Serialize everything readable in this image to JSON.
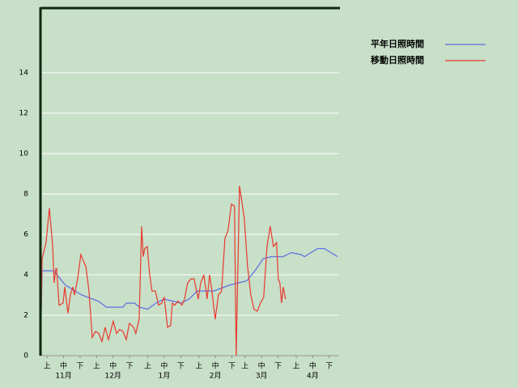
{
  "chart_data": {
    "type": "line",
    "xlim": [
      0,
      181
    ],
    "ylim": [
      0,
      17.2
    ],
    "yticks": [
      0,
      2,
      4,
      6,
      8,
      10,
      12,
      14
    ],
    "xticks": [
      {
        "value": 4,
        "label": "上"
      },
      {
        "value": 14,
        "label": "中"
      },
      {
        "value": 24,
        "label": "下"
      },
      {
        "value": 34,
        "label": "上"
      },
      {
        "value": 44,
        "label": "中"
      },
      {
        "value": 54,
        "label": "下"
      },
      {
        "value": 65,
        "label": "上"
      },
      {
        "value": 75,
        "label": "中"
      },
      {
        "value": 85,
        "label": "下"
      },
      {
        "value": 96,
        "label": "上"
      },
      {
        "value": 106,
        "label": "中"
      },
      {
        "value": 116,
        "label": "下"
      },
      {
        "value": 124,
        "label": "上"
      },
      {
        "value": 134,
        "label": "中"
      },
      {
        "value": 144,
        "label": "下"
      },
      {
        "value": 155,
        "label": "上"
      },
      {
        "value": 165,
        "label": "中"
      },
      {
        "value": 175,
        "label": "下"
      }
    ],
    "month_ticks": [
      {
        "value": 14,
        "label": "11月"
      },
      {
        "value": 44,
        "label": "12月"
      },
      {
        "value": 75,
        "label": "1月"
      },
      {
        "value": 106,
        "label": "2月"
      },
      {
        "value": 134,
        "label": "3月"
      },
      {
        "value": 165,
        "label": "4月"
      }
    ],
    "grid": true,
    "legend": "top-right",
    "series": [
      {
        "name": "平年日照時間",
        "color": "#5b6ee1",
        "x": [
          0,
          1,
          8,
          15,
          25,
          35,
          40,
          50,
          52,
          57,
          60,
          65,
          70,
          75,
          80,
          85,
          90,
          95,
          105,
          115,
          125,
          130,
          135,
          140,
          147,
          152,
          158,
          160,
          164,
          168,
          172,
          178,
          180
        ],
        "values": [
          0,
          4.2,
          4.2,
          3.5,
          3,
          2.7,
          2.4,
          2.4,
          2.6,
          2.6,
          2.4,
          2.3,
          2.6,
          2.8,
          2.7,
          2.6,
          2.8,
          3.2,
          3.2,
          3.5,
          3.7,
          4.2,
          4.8,
          4.9,
          4.9,
          5.1,
          5.0,
          4.9,
          5.1,
          5.3,
          5.3,
          5.0,
          4.9
        ]
      },
      {
        "name": "移動日照時間",
        "color": "#e8392e",
        "x": [
          0,
          1,
          3.4,
          5.4,
          7.4,
          8.3,
          9.3,
          9.8,
          11.3,
          13.7,
          14.7,
          16.7,
          18.1,
          19.6,
          20.6,
          22.5,
          24.5,
          26.5,
          27.5,
          29.4,
          31.4,
          33.3,
          35.3,
          37.3,
          39.2,
          41.2,
          44.1,
          46.1,
          48,
          50,
          52,
          53.9,
          56.4,
          57.8,
          59.8,
          61.3,
          62.3,
          63.2,
          64.7,
          66.2,
          67.6,
          69.6,
          71.6,
          73.5,
          75,
          77,
          78.9,
          79.9,
          81.4,
          83.3,
          85.8,
          87.3,
          89.2,
          91.2,
          93.1,
          95.6,
          97.1,
          99,
          101,
          102.5,
          103.9,
          105.9,
          107.8,
          109.8,
          111.8,
          113.7,
          115.7,
          117.6,
          118.6,
          120.6,
          122.1,
          123.5,
          125.5,
          127.5,
          129.4,
          131.4,
          133.3,
          135.3,
          137.3,
          139.2,
          141.2,
          143.1,
          144.1,
          145.1,
          146.1,
          147.1,
          148.5
        ],
        "values": [
          0,
          4.8,
          5.6,
          7.3,
          5.4,
          3.6,
          4.3,
          4.3,
          2.5,
          2.6,
          3.4,
          2.1,
          3.0,
          3.4,
          3.0,
          3.8,
          5.0,
          4.6,
          4.4,
          3.2,
          0.9,
          1.2,
          1.1,
          0.7,
          1.4,
          0.8,
          1.7,
          1.1,
          1.3,
          1.2,
          0.8,
          1.6,
          1.4,
          1.1,
          1.8,
          6.4,
          4.9,
          5.3,
          5.4,
          4.0,
          3.2,
          3.2,
          2.5,
          2.6,
          2.9,
          1.4,
          1.5,
          2.6,
          2.5,
          2.7,
          2.5,
          2.8,
          3.6,
          3.8,
          3.8,
          2.8,
          3.6,
          4.0,
          2.8,
          4.0,
          3.2,
          1.8,
          3.0,
          3.2,
          5.8,
          6.2,
          7.5,
          7.4,
          0,
          8.4,
          7.6,
          6.8,
          4.4,
          3.0,
          2.3,
          2.2,
          2.6,
          2.9,
          5.4,
          6.4,
          5.4,
          5.6,
          3.8,
          3.6,
          2.6,
          3.4,
          2.8
        ]
      }
    ]
  }
}
